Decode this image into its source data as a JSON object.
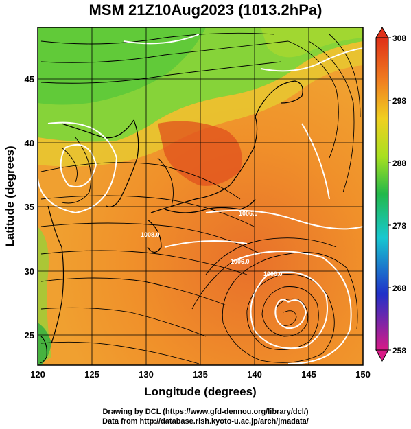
{
  "title": "MSM 21Z10Aug2023 (1013.2hPa)",
  "x_axis": {
    "label": "Longitude (degrees)",
    "ticks": [
      "120",
      "125",
      "130",
      "135",
      "140",
      "145",
      "150"
    ],
    "range": [
      120,
      150
    ]
  },
  "y_axis": {
    "label": "Latitude  (degrees)",
    "ticks": [
      "25",
      "30",
      "35",
      "40",
      "45"
    ],
    "range": [
      22.4,
      47.6
    ]
  },
  "colorbar": {
    "ticks": [
      "308",
      "298",
      "288",
      "278",
      "268",
      "258"
    ],
    "range": [
      258,
      308
    ],
    "colors": [
      "#d81b86",
      "#2030c8",
      "#18c8d0",
      "#22b84a",
      "#a8e020",
      "#f0d020",
      "#f08020",
      "#e03018"
    ]
  },
  "contour_labels": [
    "1006.0",
    "1000.0",
    "1006.0",
    "1008.0"
  ],
  "typhoon_center": {
    "lon": 142.5,
    "lat": 26.6
  },
  "credits": {
    "line1": "Drawing by DCL (https://www.gfd-dennou.org/library/dcl/)",
    "line2": "Data from http://database.rish.kyoto-u.ac.jp/arch/jmadata/"
  }
}
